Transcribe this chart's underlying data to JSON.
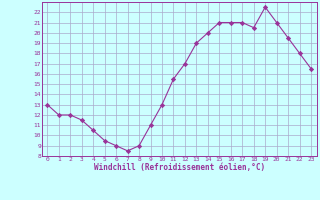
{
  "x": [
    0,
    1,
    2,
    3,
    4,
    5,
    6,
    7,
    8,
    9,
    10,
    11,
    12,
    13,
    14,
    15,
    16,
    17,
    18,
    19,
    20,
    21,
    22,
    23
  ],
  "y": [
    13,
    12,
    12,
    11.5,
    10.5,
    9.5,
    9,
    8.5,
    9,
    11,
    13,
    15.5,
    17,
    19,
    20,
    21,
    21,
    21,
    20.5,
    22.5,
    21,
    19.5,
    18,
    16.5
  ],
  "line_color": "#993399",
  "marker": "D",
  "marker_size": 2.2,
  "bg_color": "#ccffff",
  "grid_color": "#aaaacc",
  "xlabel": "Windchill (Refroidissement éolien,°C)",
  "xlabel_color": "#993399",
  "tick_color": "#993399",
  "ylim": [
    8,
    23
  ],
  "xlim": [
    -0.5,
    23.5
  ],
  "yticks": [
    8,
    9,
    10,
    11,
    12,
    13,
    14,
    15,
    16,
    17,
    18,
    19,
    20,
    21,
    22
  ],
  "xticks": [
    0,
    1,
    2,
    3,
    4,
    5,
    6,
    7,
    8,
    9,
    10,
    11,
    12,
    13,
    14,
    15,
    16,
    17,
    18,
    19,
    20,
    21,
    22,
    23
  ]
}
